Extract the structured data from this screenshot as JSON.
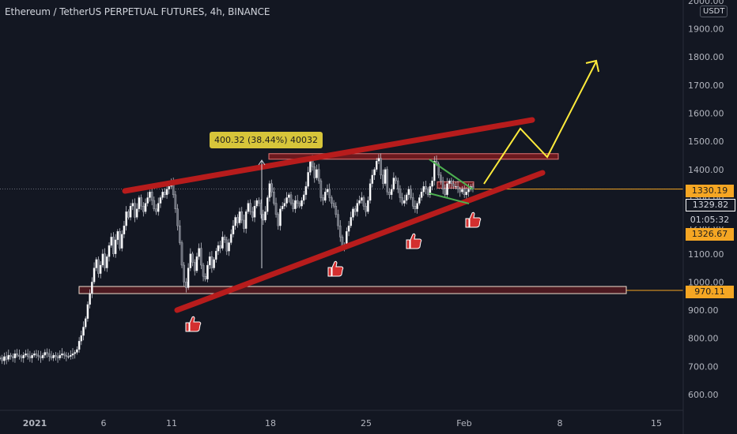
{
  "chart_title": "Ethereum / TetherUS PERPETUAL FUTURES, 4h, BINANCE",
  "currency": "USDT",
  "measure_label": "400.32 (38.44%) 40032",
  "price_tags": {
    "last_price": "1330.19",
    "bid": "1329.82",
    "countdown": "01:05:32",
    "ask": "1326.67",
    "support": "970.11"
  },
  "colors": {
    "background": "#131722",
    "up_candle": "#ffffff",
    "channel": "#b71c1c",
    "projection": "#ffeb3b",
    "wedge": "#4caf50",
    "price_line": "#f5a623"
  },
  "icons": [
    "thumbs-up-icon",
    "thumbs-up-icon",
    "thumbs-up-icon",
    "thumbs-up-icon",
    "thumbs-up-icon"
  ],
  "chart_data": {
    "type": "candlestick",
    "timeframe": "4h",
    "x_ticks": [
      "2021",
      "6",
      "11",
      "18",
      "25",
      "Feb",
      "8",
      "15"
    ],
    "y_ticks": [
      600,
      700,
      800,
      900,
      1000,
      1100,
      1200,
      1300,
      1400,
      1500,
      1600,
      1700,
      1800,
      1900,
      2000
    ],
    "y_tick_labels": [
      "600.00",
      "700.00",
      "800.00",
      "900.00",
      "1000.00",
      "1100.00",
      "1200.00",
      "1300.00",
      "1400.00",
      "1500.00",
      "1600.00",
      "1700.00",
      "1800.00",
      "1900.00",
      "2000.00"
    ],
    "ylim": [
      510,
      2000
    ],
    "last_price": 1330.19,
    "support_level": 970.11,
    "resistance_level": 1445,
    "series": [
      {
        "values": [
          730,
          720,
          735,
          725,
          740,
          735,
          730,
          745,
          740,
          735,
          730,
          740,
          745,
          735,
          730,
          740,
          745,
          740,
          735,
          730,
          740,
          750,
          745,
          735,
          730,
          740,
          735,
          730,
          740,
          745,
          740,
          735,
          735,
          740,
          745,
          750,
          760,
          790,
          810,
          840,
          870,
          920,
          960,
          1000,
          1050,
          1080,
          1030,
          1060,
          1100,
          1050,
          1090,
          1130,
          1160,
          1100,
          1150,
          1180,
          1120,
          1170,
          1200,
          1250,
          1230,
          1270,
          1280,
          1230,
          1260,
          1300,
          1270,
          1250,
          1280,
          1300,
          1320,
          1290,
          1260,
          1250,
          1280,
          1300,
          1320,
          1310,
          1330,
          1340,
          1360,
          1310,
          1260,
          1200,
          1140,
          1060,
          1000,
          980,
          1050,
          1100,
          1070,
          1040,
          1090,
          1120,
          1060,
          1020,
          1010,
          1060,
          1090,
          1050,
          1080,
          1110,
          1130,
          1120,
          1160,
          1150,
          1110,
          1140,
          1170,
          1200,
          1230,
          1210,
          1250,
          1220,
          1190,
          1250,
          1280,
          1250,
          1230,
          1270,
          1290,
          1280,
          1240,
          1220,
          1250,
          1300,
          1350,
          1320,
          1280,
          1240,
          1200,
          1260,
          1270,
          1280,
          1300,
          1310,
          1280,
          1260,
          1290,
          1280,
          1270,
          1290,
          1310,
          1340,
          1390,
          1440,
          1410,
          1370,
          1400,
          1360,
          1300,
          1290,
          1320,
          1330,
          1300,
          1280,
          1270,
          1240,
          1200,
          1160,
          1120,
          1130,
          1180,
          1200,
          1230,
          1260,
          1250,
          1280,
          1290,
          1300,
          1270,
          1250,
          1290,
          1350,
          1380,
          1400,
          1430,
          1440,
          1380,
          1350,
          1400,
          1320,
          1310,
          1330,
          1370,
          1360,
          1330,
          1300,
          1280,
          1290,
          1310,
          1330,
          1300,
          1270,
          1260,
          1280,
          1300,
          1320,
          1340,
          1330,
          1310,
          1340,
          1360,
          1430,
          1420,
          1380,
          1360,
          1330,
          1310,
          1350,
          1360,
          1350,
          1340,
          1340,
          1330,
          1320,
          1330,
          1310,
          1320,
          1330,
          1340,
          1330
        ]
      }
    ]
  }
}
